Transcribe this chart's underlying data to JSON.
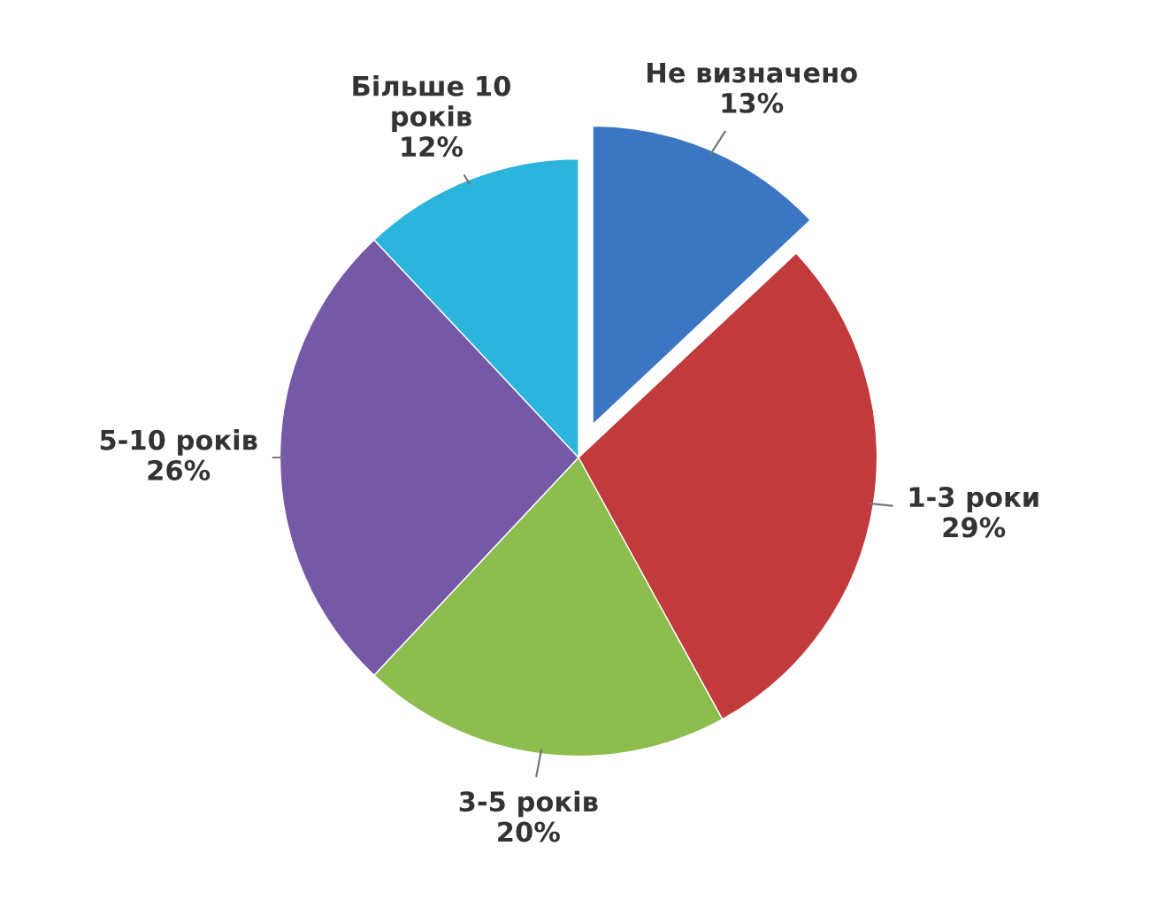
{
  "chart_data": {
    "type": "pie",
    "categories": [
      "Не визначено",
      "1-3 роки",
      "3-5 років",
      "5-10 років",
      "Більше 10\nроків"
    ],
    "values": [
      13,
      29,
      20,
      26,
      12
    ],
    "colors": [
      "#3b76c2",
      "#c13a3c",
      "#8dbd4e",
      "#7559a6",
      "#2bb4dc"
    ],
    "value_labels": [
      "13%",
      "29%",
      "20%",
      "26%",
      "12%"
    ]
  }
}
